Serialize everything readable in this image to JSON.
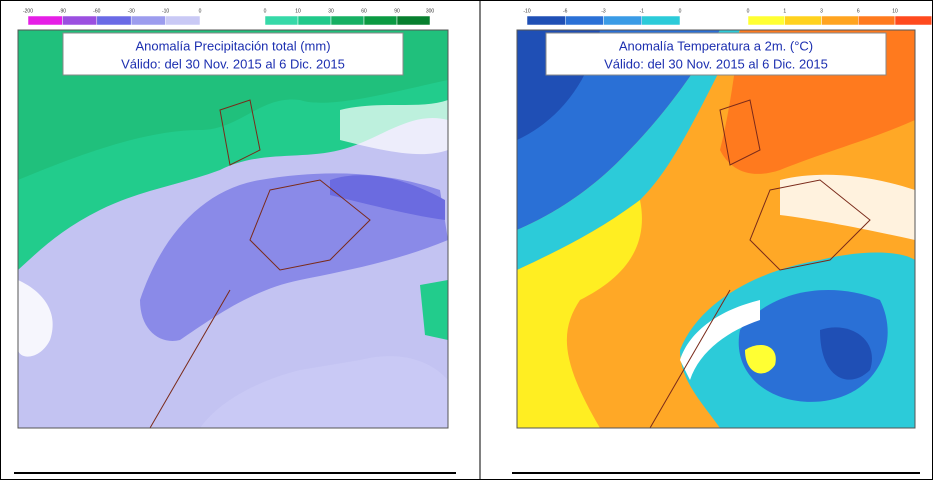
{
  "panels": [
    {
      "title": "Anomalía Precipitación total (mm)",
      "subtitle": "Válido: del 30 Nov. 2015 al 6 Dic. 2015",
      "legends": [
        {
          "ticks": [
            "-200",
            "-90",
            "-60",
            "-30",
            "-10",
            "0"
          ],
          "colors": [
            "#e61ee6",
            "#9b4fe0",
            "#6a6ae6",
            "#9c9cee",
            "#c9c9f5"
          ]
        },
        {
          "ticks": [
            "0",
            "10",
            "30",
            "60",
            "90",
            "300"
          ],
          "colors": [
            "#36d9a8",
            "#20c98a",
            "#16b063",
            "#0b9a42",
            "#077f2e"
          ]
        }
      ]
    },
    {
      "title": "Anomalía Temperatura a 2m. (°C)",
      "subtitle": "Válido: del 30 Nov. 2015 al 6 Dic. 2015",
      "legends": [
        {
          "ticks": [
            "-10",
            "-6",
            "-3",
            "-1",
            "0"
          ],
          "colors": [
            "#1f4fb5",
            "#2a70d6",
            "#3a9be6",
            "#2ccbd9"
          ]
        },
        {
          "ticks": [
            "0",
            "1",
            "3",
            "6",
            "10"
          ],
          "colors": [
            "#ffff33",
            "#ffd21e",
            "#ffa420",
            "#ff7a1e",
            "#ff4a1e"
          ]
        }
      ]
    }
  ]
}
